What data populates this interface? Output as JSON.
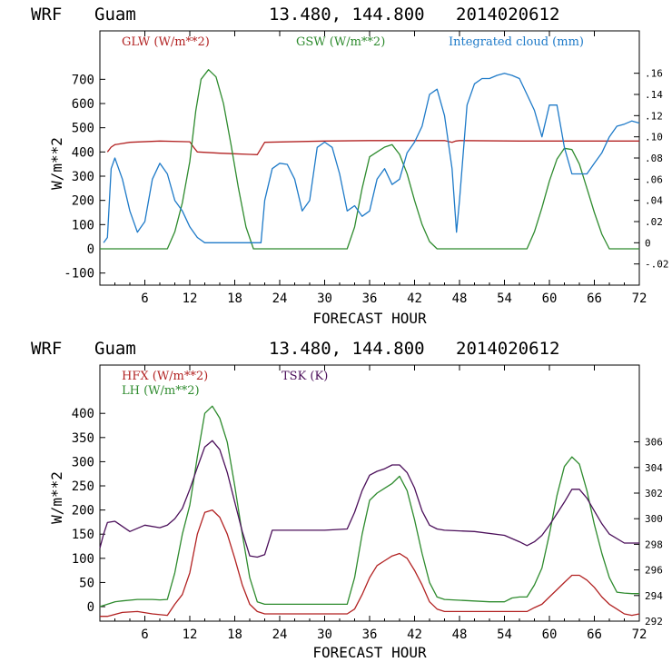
{
  "chart_data": [
    {
      "type": "line",
      "header": {
        "model": "WRF",
        "location": "Guam",
        "coords": "13.480, 144.800",
        "date": "2014020612"
      },
      "xlabel": "FORECAST HOUR",
      "ylabel": "W/m**2",
      "xlim": [
        0,
        72
      ],
      "ylim": [
        -150,
        900
      ],
      "y2lim": [
        -0.04,
        0.2
      ],
      "xticks": [
        "6",
        "12",
        "18",
        "24",
        "30",
        "36",
        "42",
        "48",
        "54",
        "60",
        "66",
        "72"
      ],
      "yticks": [
        "-100",
        "0",
        "100",
        "200",
        "300",
        "400",
        "500",
        "600",
        "700"
      ],
      "y2ticks": [
        "-.02",
        "0",
        ".02",
        ".04",
        ".06",
        ".08",
        ".10",
        ".12",
        ".14",
        ".16"
      ],
      "series": [
        {
          "name": "GLW (W/m**2)",
          "color": "#b22222",
          "axis": "left",
          "x": [
            1,
            1.5,
            2,
            4,
            8,
            12,
            12.5,
            13,
            16,
            20,
            21,
            22,
            30,
            36,
            46,
            47,
            47.5,
            48,
            56,
            60,
            66,
            72
          ],
          "values": [
            400,
            420,
            430,
            440,
            445,
            442,
            420,
            400,
            395,
            390,
            389,
            440,
            445,
            447,
            447,
            440,
            445,
            447,
            445,
            445,
            445,
            445
          ]
        },
        {
          "name": "GSW (W/m**2)",
          "color": "#2e8b2e",
          "axis": "left",
          "x": [
            0,
            9,
            10,
            11,
            12,
            12.8,
            13.5,
            14.5,
            15.5,
            16.5,
            17.5,
            18.5,
            19.5,
            20.5,
            33,
            34,
            35,
            36,
            37,
            38,
            39,
            40,
            41,
            42,
            43,
            44,
            45,
            46,
            57,
            58,
            59,
            60,
            61,
            62,
            63,
            64,
            65,
            66,
            67,
            68,
            72
          ],
          "values": [
            0,
            0,
            70,
            190,
            360,
            570,
            700,
            740,
            710,
            600,
            430,
            250,
            90,
            0,
            0,
            90,
            250,
            380,
            400,
            420,
            430,
            390,
            310,
            200,
            100,
            30,
            0,
            0,
            0,
            70,
            170,
            280,
            370,
            415,
            410,
            350,
            250,
            150,
            60,
            0,
            0
          ]
        },
        {
          "name": "Integrated cloud (mm)",
          "color": "#1e7ac8",
          "axis": "right",
          "x": [
            0.5,
            1,
            1.5,
            2,
            3,
            4,
            5,
            6,
            7,
            8,
            9,
            10,
            11,
            12,
            13,
            14,
            19,
            21,
            21.5,
            22,
            23,
            24,
            25,
            26,
            27,
            28,
            29,
            30,
            31,
            32,
            33,
            34,
            35,
            36,
            37,
            38,
            39,
            40,
            41,
            42,
            43,
            44,
            45,
            46,
            47,
            47.6,
            48,
            49,
            50,
            51,
            52,
            53,
            54,
            55,
            56,
            57,
            58,
            59,
            60,
            61,
            62,
            63,
            64,
            65,
            66,
            67,
            68,
            69,
            70,
            71,
            72
          ],
          "values": [
            0,
            0.005,
            0.07,
            0.08,
            0.06,
            0.03,
            0.01,
            0.02,
            0.06,
            0.075,
            0.065,
            0.04,
            0.03,
            0.015,
            0.005,
            0,
            0,
            0,
            0,
            0.04,
            0.07,
            0.075,
            0.074,
            0.06,
            0.03,
            0.04,
            0.09,
            0.095,
            0.09,
            0.065,
            0.03,
            0.035,
            0.025,
            0.03,
            0.06,
            0.07,
            0.055,
            0.06,
            0.085,
            0.095,
            0.11,
            0.14,
            0.145,
            0.12,
            0.07,
            0.01,
            0.04,
            0.13,
            0.15,
            0.155,
            0.155,
            0.158,
            0.16,
            0.158,
            0.155,
            0.14,
            0.125,
            0.1,
            0.13,
            0.13,
            0.09,
            0.065,
            0.065,
            0.065,
            0.075,
            0.085,
            0.1,
            0.11,
            0.112,
            0.115,
            0.113
          ]
        }
      ]
    },
    {
      "type": "line",
      "header": {
        "model": "WRF",
        "location": "Guam",
        "coords": "13.480, 144.800",
        "date": "2014020612"
      },
      "xlabel": "FORECAST HOUR",
      "ylabel": "W/m**2",
      "xlim": [
        0,
        72
      ],
      "ylim": [
        -30,
        500
      ],
      "y2lim": [
        292,
        312
      ],
      "xticks": [
        "6",
        "12",
        "18",
        "24",
        "30",
        "36",
        "42",
        "48",
        "54",
        "60",
        "66",
        "72"
      ],
      "yticks": [
        "0",
        "50",
        "100",
        "150",
        "200",
        "250",
        "300",
        "350",
        "400"
      ],
      "y2ticks": [
        "292",
        "294",
        "296",
        "298",
        "300",
        "302",
        "304",
        "306"
      ],
      "series": [
        {
          "name": "HFX (W/m**2)",
          "color": "#b22222",
          "axis": "left",
          "x": [
            0,
            1,
            3,
            5,
            7,
            9,
            10,
            11,
            12,
            13,
            14,
            15,
            16,
            17,
            18,
            19,
            20,
            21,
            22,
            33,
            34,
            35,
            36,
            37,
            38,
            39,
            40,
            41,
            42,
            43,
            44,
            45,
            46,
            57,
            58,
            59,
            60,
            61,
            62,
            63,
            64,
            65,
            66,
            67,
            68,
            69,
            70,
            71,
            72
          ],
          "values": [
            -20,
            -20,
            -12,
            -10,
            -15,
            -18,
            5,
            25,
            70,
            150,
            195,
            200,
            185,
            150,
            100,
            45,
            5,
            -10,
            -15,
            -15,
            -5,
            25,
            60,
            85,
            95,
            105,
            110,
            100,
            75,
            45,
            10,
            -5,
            -10,
            -10,
            -2,
            5,
            20,
            35,
            50,
            65,
            65,
            55,
            40,
            20,
            5,
            -5,
            -15,
            -18,
            -15
          ]
        },
        {
          "name": "LH (W/m**2)",
          "color": "#2e8b2e",
          "axis": "left",
          "x": [
            0,
            1,
            2,
            3,
            5,
            7,
            8,
            9,
            10,
            11,
            12,
            13,
            14,
            15,
            16,
            17,
            18,
            19,
            20,
            21,
            22,
            33,
            34,
            35,
            36,
            37,
            38,
            39,
            40,
            41,
            42,
            43,
            44,
            45,
            46,
            52,
            54,
            55,
            56,
            57,
            58,
            59,
            60,
            61,
            62,
            63,
            64,
            65,
            66,
            67,
            68,
            69,
            70,
            71,
            72
          ],
          "values": [
            0,
            5,
            10,
            12,
            15,
            15,
            14,
            15,
            70,
            150,
            210,
            310,
            400,
            415,
            390,
            340,
            250,
            150,
            60,
            10,
            5,
            5,
            60,
            150,
            220,
            235,
            245,
            255,
            270,
            240,
            180,
            110,
            50,
            20,
            15,
            10,
            10,
            18,
            20,
            20,
            45,
            80,
            150,
            230,
            290,
            310,
            295,
            240,
            170,
            110,
            60,
            30,
            28,
            27,
            27
          ]
        },
        {
          "name": "TSK (K)",
          "color": "#4b0f5a",
          "axis": "right",
          "x": [
            0,
            0.5,
            1,
            2,
            4,
            6,
            8,
            9,
            10,
            11,
            12,
            13,
            14,
            15,
            16,
            17,
            18,
            19,
            20,
            21,
            22,
            23,
            26,
            30,
            33,
            34,
            35,
            36,
            37,
            38,
            39,
            40,
            41,
            42,
            43,
            44,
            45,
            46,
            50,
            54,
            56,
            57,
            58,
            59,
            60,
            61,
            62,
            63,
            64,
            65,
            66,
            67,
            68,
            70,
            72
          ],
          "values": [
            297.7,
            298.8,
            299.7,
            299.8,
            299.0,
            299.5,
            299.3,
            299.5,
            300.0,
            300.8,
            302.3,
            304.0,
            305.6,
            306.1,
            305.4,
            303.6,
            301.3,
            299.0,
            297.1,
            297.0,
            297.2,
            299.1,
            299.1,
            299.1,
            299.2,
            300.5,
            302.2,
            303.4,
            303.7,
            303.9,
            304.2,
            304.2,
            303.6,
            302.4,
            300.6,
            299.5,
            299.2,
            299.1,
            299.0,
            298.7,
            298.2,
            297.9,
            298.2,
            298.7,
            299.5,
            300.4,
            301.3,
            302.3,
            302.3,
            301.6,
            300.6,
            299.6,
            298.8,
            298.1,
            298.1
          ]
        }
      ]
    }
  ]
}
